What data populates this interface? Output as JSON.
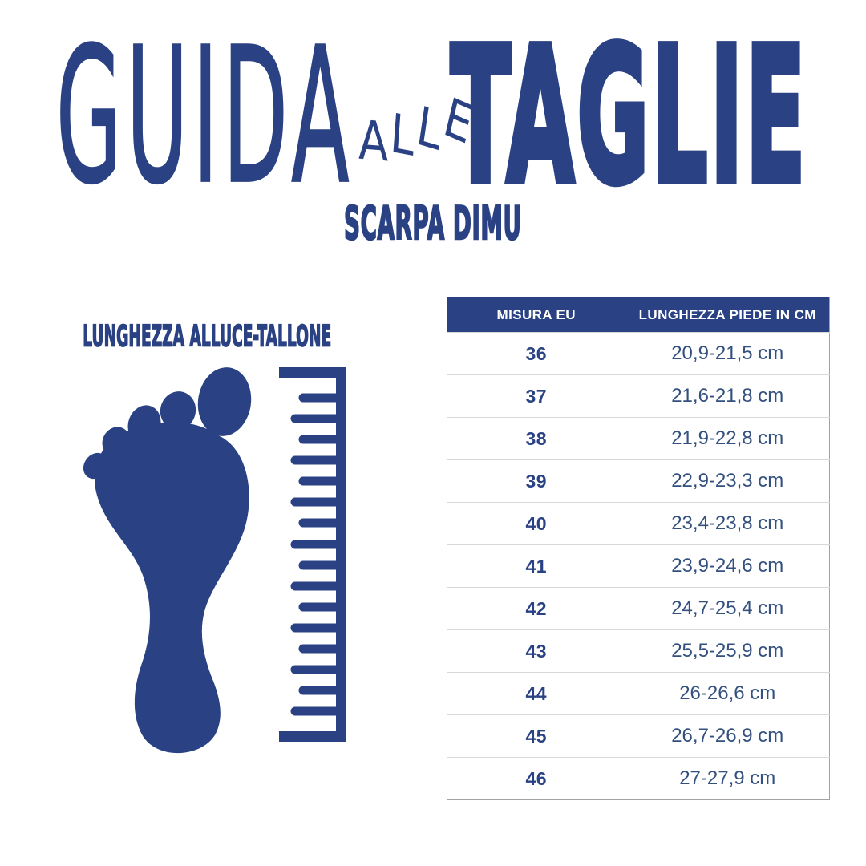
{
  "page": {
    "background_color": "#ffffff",
    "brand_color": "#2a4284",
    "length_text_color": "#33507e"
  },
  "header": {
    "title_word_1": "GUIDA",
    "title_word_2": "ALLE",
    "title_word_3": "TAGLIE",
    "subtitle": "SCARPA DIMU"
  },
  "measure_diagram": {
    "label": "LUNGHEZZA ALLUCE-TALLONE",
    "icons": [
      "footprint-icon",
      "ruler-icon"
    ]
  },
  "size_table": {
    "columns": [
      "MISURA EU",
      "LUNGHEZZA PIEDE IN CM"
    ],
    "rows": [
      [
        "36",
        "20,9-21,5 cm"
      ],
      [
        "37",
        "21,6-21,8 cm"
      ],
      [
        "38",
        "21,9-22,8 cm"
      ],
      [
        "39",
        "22,9-23,3 cm"
      ],
      [
        "40",
        "23,4-23,8 cm"
      ],
      [
        "41",
        "23,9-24,6 cm"
      ],
      [
        "42",
        "24,7-25,4 cm"
      ],
      [
        "43",
        "25,5-25,9 cm"
      ],
      [
        "44",
        "26-26,6 cm"
      ],
      [
        "45",
        "26,7-26,9 cm"
      ],
      [
        "46",
        "27-27,9 cm"
      ]
    ]
  }
}
